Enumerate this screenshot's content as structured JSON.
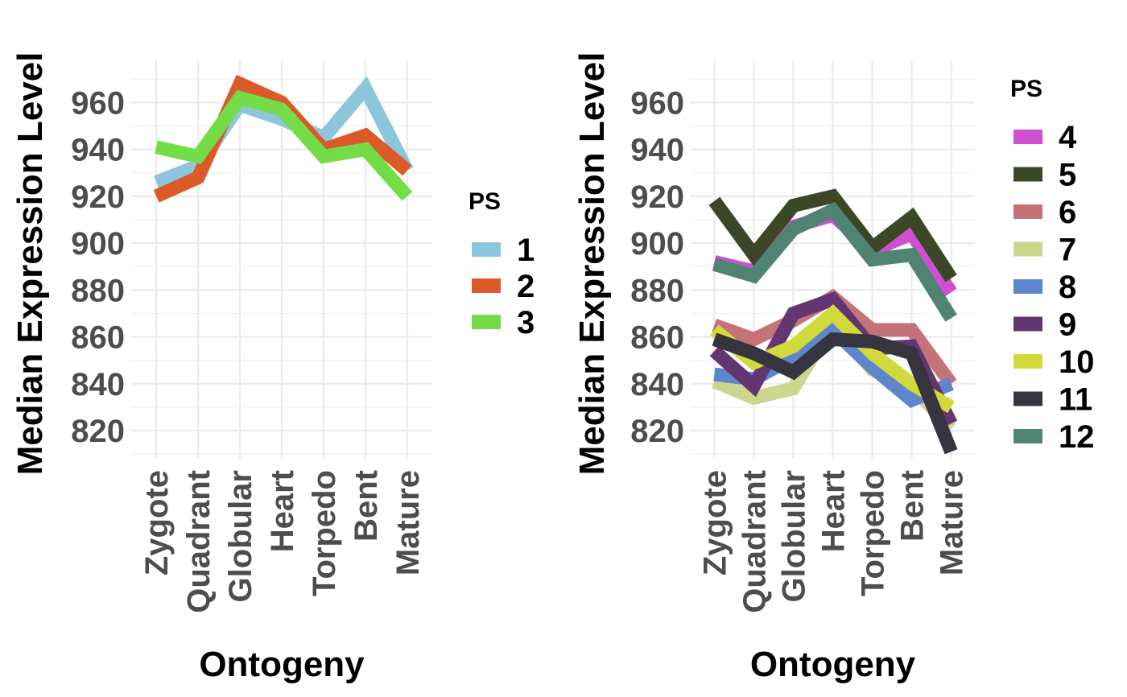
{
  "chart_data": [
    {
      "type": "line",
      "categories": [
        "Zygote",
        "Quadrant",
        "Globular",
        "Heart",
        "Torpedo",
        "Bent",
        "Mature"
      ],
      "xlabel": "Ontogeny",
      "ylabel": "Median Expression Level",
      "ylim": [
        808,
        978
      ],
      "yticks": [
        820,
        840,
        860,
        880,
        900,
        920,
        940,
        960
      ],
      "grid": true,
      "legend_title": "PS",
      "legend_position": "right",
      "series": [
        {
          "name": "1",
          "color": "#8dc6dc",
          "values": [
            926,
            933,
            959,
            953,
            945,
            966,
            931
          ]
        },
        {
          "name": "2",
          "color": "#dc5a28",
          "values": [
            920,
            928,
            968,
            960,
            940,
            946,
            931
          ]
        },
        {
          "name": "3",
          "color": "#74dc46",
          "values": [
            941,
            937,
            962,
            957,
            937,
            940,
            920
          ]
        }
      ]
    },
    {
      "type": "line",
      "categories": [
        "Zygote",
        "Quadrant",
        "Globular",
        "Heart",
        "Torpedo",
        "Bent",
        "Mature"
      ],
      "xlabel": "Ontogeny",
      "ylabel": "Median Expression Level",
      "ylim": [
        808,
        978
      ],
      "yticks": [
        820,
        840,
        860,
        880,
        900,
        920,
        940,
        960
      ],
      "grid": true,
      "legend_title": "PS",
      "legend_position": "right",
      "series": [
        {
          "name": "4",
          "color": "#d04fd1",
          "values": [
            892,
            888,
            907,
            912,
            897,
            904,
            879
          ]
        },
        {
          "name": "5",
          "color": "#3b4725",
          "values": [
            918,
            895,
            916,
            920,
            898,
            911,
            885
          ]
        },
        {
          "name": "6",
          "color": "#c47378",
          "values": [
            865,
            859,
            867,
            877,
            863,
            863,
            840
          ]
        },
        {
          "name": "7",
          "color": "#cdd68d",
          "values": [
            841,
            834,
            838,
            866,
            846,
            839,
            821
          ]
        },
        {
          "name": "8",
          "color": "#5d86cd",
          "values": [
            844,
            842,
            851,
            863,
            847,
            833,
            840
          ]
        },
        {
          "name": "9",
          "color": "#633671",
          "values": [
            854,
            839,
            870,
            876,
            855,
            856,
            823
          ]
        },
        {
          "name": "10",
          "color": "#d2d93a",
          "values": [
            863,
            849,
            856,
            870,
            853,
            840,
            830
          ]
        },
        {
          "name": "11",
          "color": "#35343f",
          "values": [
            859,
            853,
            845,
            859,
            858,
            853,
            811
          ]
        },
        {
          "name": "12",
          "color": "#4f8473",
          "values": [
            891,
            886,
            906,
            914,
            893,
            895,
            868
          ]
        }
      ]
    }
  ]
}
